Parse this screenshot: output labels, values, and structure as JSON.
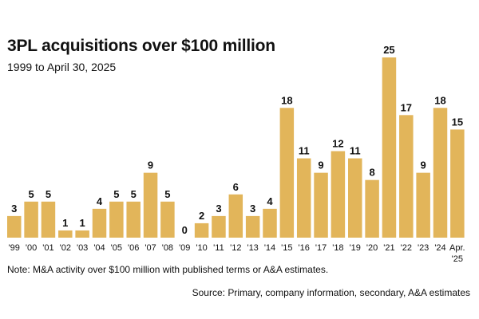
{
  "chart_data": {
    "type": "bar",
    "title": "3PL acquisitions over $100 million",
    "subtitle": "1999 to April 30, 2025",
    "categories": [
      "'99",
      "'00",
      "'01",
      "'02",
      "'03",
      "'04",
      "'05",
      "'06",
      "'07",
      "'08",
      "'09",
      "'10",
      "'11",
      "'12",
      "'13",
      "'14",
      "'15",
      "'16",
      "'17",
      "'18",
      "'19",
      "'20",
      "'21",
      "'22",
      "'23",
      "'24",
      "Apr. '25"
    ],
    "category_lines": [
      [
        "'99"
      ],
      [
        "'00"
      ],
      [
        "'01"
      ],
      [
        "'02"
      ],
      [
        "'03"
      ],
      [
        "'04"
      ],
      [
        "'05"
      ],
      [
        "'06"
      ],
      [
        "'07"
      ],
      [
        "'08"
      ],
      [
        "'09"
      ],
      [
        "'10"
      ],
      [
        "'11"
      ],
      [
        "'12"
      ],
      [
        "'13"
      ],
      [
        "'14"
      ],
      [
        "'15"
      ],
      [
        "'16"
      ],
      [
        "'17"
      ],
      [
        "'18"
      ],
      [
        "'19"
      ],
      [
        "'20"
      ],
      [
        "'21"
      ],
      [
        "'22"
      ],
      [
        "'23"
      ],
      [
        "'24"
      ],
      [
        "Apr.",
        "'25"
      ]
    ],
    "values": [
      3,
      5,
      5,
      1,
      1,
      4,
      5,
      5,
      9,
      5,
      0,
      2,
      3,
      6,
      3,
      4,
      18,
      11,
      9,
      12,
      11,
      8,
      25,
      17,
      9,
      18,
      15
    ],
    "data_labels": [
      "3",
      "5",
      "5",
      "1",
      "1",
      "4",
      "5",
      "5",
      "9",
      "5",
      "0",
      "2",
      "3",
      "6",
      "3",
      "4",
      "18",
      "11",
      "9",
      "12",
      "11",
      "8",
      "25",
      "17",
      "9",
      "18",
      "15"
    ],
    "ylim": [
      0,
      25
    ],
    "xlabel": "",
    "ylabel": "",
    "grid": false,
    "bar_color": "#e2b55a",
    "text_color": "#111111"
  },
  "note": "Note: M&A activity over $100 million with published terms or A&A estimates.",
  "source": "Source: Primary, company information, secondary, A&A estimates"
}
